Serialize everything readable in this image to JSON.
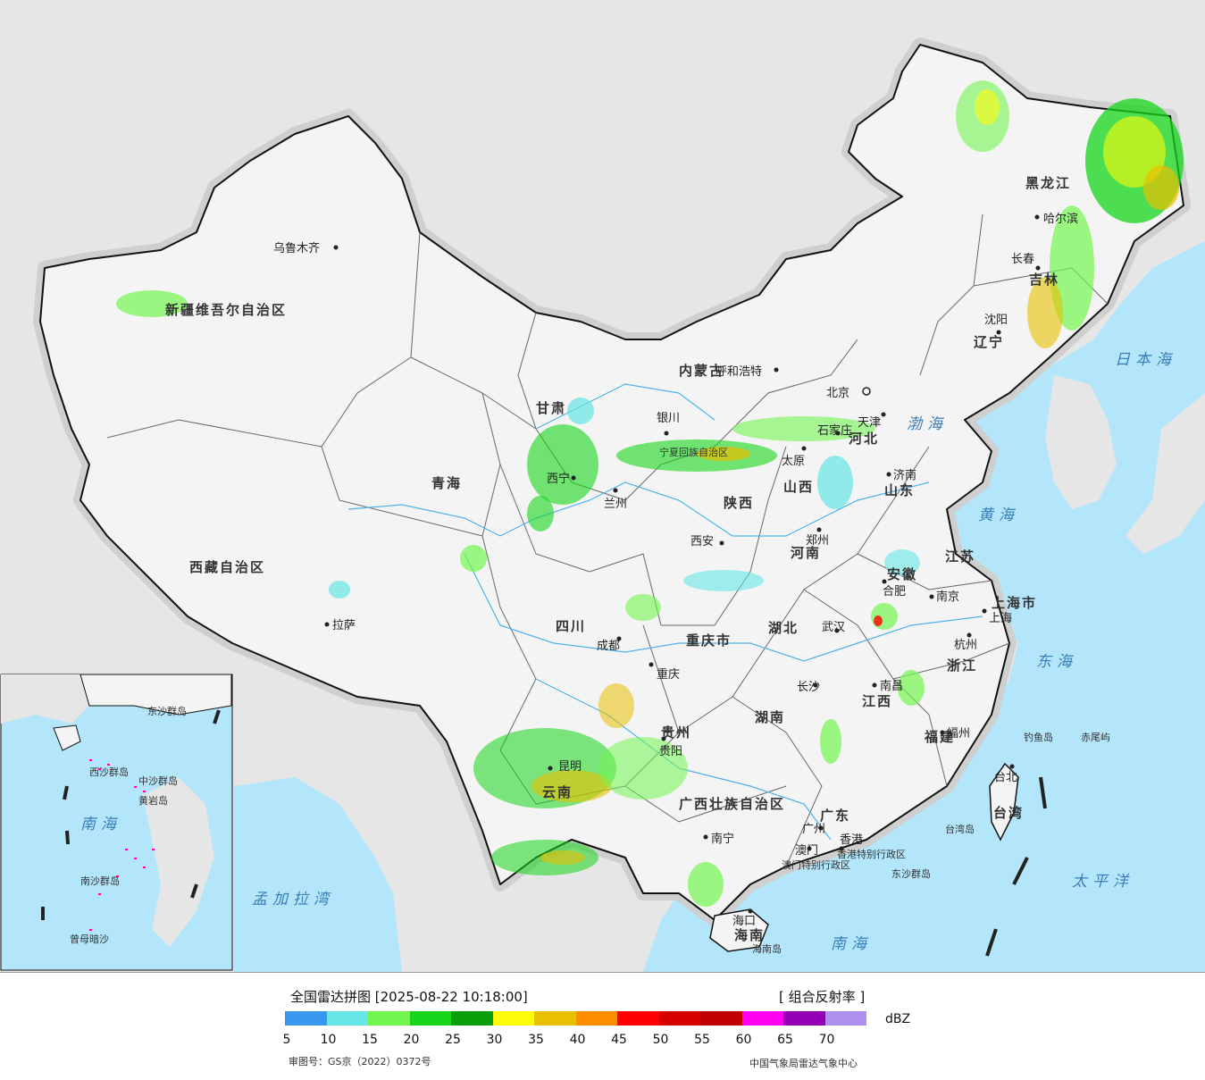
{
  "map": {
    "cities": [
      {
        "name": "乌鲁木齐"
      },
      {
        "name": "拉萨"
      },
      {
        "name": "西宁"
      },
      {
        "name": "兰州"
      },
      {
        "name": "银川"
      },
      {
        "name": "呼和浩特"
      },
      {
        "name": "北京"
      },
      {
        "name": "天津"
      },
      {
        "name": "石家庄"
      },
      {
        "name": "太原"
      },
      {
        "name": "济南"
      },
      {
        "name": "郑州"
      },
      {
        "name": "西安"
      },
      {
        "name": "成都"
      },
      {
        "name": "重庆"
      },
      {
        "name": "武汉"
      },
      {
        "name": "合肥"
      },
      {
        "name": "南京"
      },
      {
        "name": "上海"
      },
      {
        "name": "杭州"
      },
      {
        "name": "南昌"
      },
      {
        "name": "长沙"
      },
      {
        "name": "贵阳"
      },
      {
        "name": "昆明"
      },
      {
        "name": "南宁"
      },
      {
        "name": "广州"
      },
      {
        "name": "香港"
      },
      {
        "name": "澳门"
      },
      {
        "name": "福州"
      },
      {
        "name": "台北"
      },
      {
        "name": "海口"
      },
      {
        "name": "哈尔滨"
      },
      {
        "name": "长春"
      },
      {
        "name": "沈阳"
      }
    ],
    "provinces": [
      {
        "name": "新疆维吾尔自治区"
      },
      {
        "name": "西藏自治区"
      },
      {
        "name": "青海"
      },
      {
        "name": "甘肃"
      },
      {
        "name": "四川"
      },
      {
        "name": "云南"
      },
      {
        "name": "内蒙古"
      },
      {
        "name": "黑龙江"
      },
      {
        "name": "吉林"
      },
      {
        "name": "辽宁"
      },
      {
        "name": "河北"
      },
      {
        "name": "山西"
      },
      {
        "name": "陕西"
      },
      {
        "name": "河南"
      },
      {
        "name": "山东"
      },
      {
        "name": "江苏"
      },
      {
        "name": "安徽"
      },
      {
        "name": "浙江"
      },
      {
        "name": "湖北"
      },
      {
        "name": "湖南"
      },
      {
        "name": "江西"
      },
      {
        "name": "福建"
      },
      {
        "name": "广东"
      },
      {
        "name": "广西壮族自治区"
      },
      {
        "name": "贵州"
      },
      {
        "name": "重庆市"
      },
      {
        "name": "上海市"
      },
      {
        "name": "海南"
      },
      {
        "name": "台湾"
      },
      {
        "name": "香港特别行政区"
      },
      {
        "name": "澳门特别行政区"
      },
      {
        "name": "宁夏回族自治区"
      }
    ],
    "seas": [
      "渤海",
      "黄海",
      "东海",
      "日本海",
      "太平洋",
      "南海",
      "孟加拉湾"
    ],
    "islands": [
      "钓鱼岛",
      "赤尾屿",
      "东沙群岛",
      "台湾岛",
      "海南岛"
    ],
    "inset_labels": [
      "南海",
      "西沙群岛",
      "中沙群岛",
      "南沙群岛",
      "黄岩岛",
      "曾母暗沙",
      "东沙群岛"
    ]
  },
  "legend": {
    "title": "全国雷达拼图 [2025-08-22 10:18:00]",
    "product": "[ 组合反射率 ]",
    "unit": "dBZ",
    "ticks": [
      "5",
      "10",
      "15",
      "20",
      "25",
      "30",
      "35",
      "40",
      "45",
      "50",
      "55",
      "60",
      "65",
      "70"
    ],
    "colors": [
      "#3a97f0",
      "#66e6e6",
      "#73f550",
      "#15d61a",
      "#0b9e0b",
      "#fcfc0a",
      "#e8c000",
      "#ff8c00",
      "#ff0000",
      "#d60000",
      "#c00000",
      "#ff00f0",
      "#9600b4",
      "#ad90f0"
    ],
    "review_number": "审图号：GS京（2022）0372号",
    "agency": "中国气象局雷达气象中心"
  },
  "colors": {
    "ocean": "#b3e6fa",
    "land": "#f2f2f2",
    "outside": "#e6e6e6",
    "border": "#111111"
  }
}
